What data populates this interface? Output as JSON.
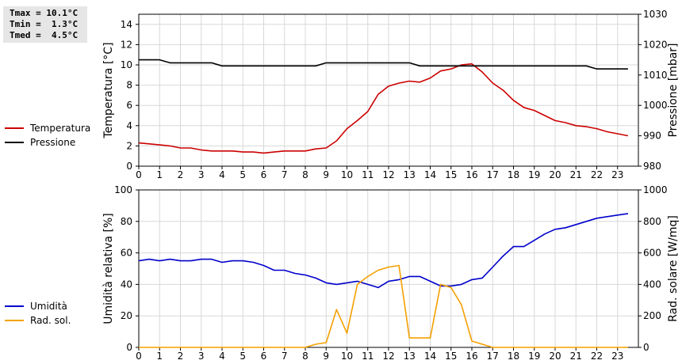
{
  "stats": {
    "tmax": "Tmax = 10.1°C",
    "tmin": "Tmin =  1.3°C",
    "tmed": "Tmed =  4.5°C"
  },
  "chart_data": [
    {
      "type": "line",
      "x": [
        0,
        0.5,
        1,
        1.5,
        2,
        2.5,
        3,
        3.5,
        4,
        4.5,
        5,
        5.5,
        6,
        6.5,
        7,
        7.5,
        8,
        8.5,
        9,
        9.5,
        10,
        10.5,
        11,
        11.5,
        12,
        12.5,
        13,
        13.5,
        14,
        14.5,
        15,
        15.5,
        16,
        16.5,
        17,
        17.5,
        18,
        18.5,
        19,
        19.5,
        20,
        20.5,
        21,
        21.5,
        22,
        22.5,
        23,
        23.5
      ],
      "xlim": [
        0,
        24
      ],
      "xticks": [
        0,
        1,
        2,
        3,
        4,
        5,
        6,
        7,
        8,
        9,
        10,
        11,
        12,
        13,
        14,
        15,
        16,
        17,
        18,
        19,
        20,
        21,
        22,
        23
      ],
      "ylabel": "Temperatura [°C]",
      "ylim": [
        0,
        15
      ],
      "yticks": [
        0,
        2,
        4,
        6,
        8,
        10,
        12,
        14
      ],
      "y2label": "Pressione [mbar]",
      "y2lim": [
        980,
        1030
      ],
      "y2ticks": [
        980,
        990,
        1000,
        1010,
        1020,
        1030
      ],
      "grid": true,
      "legend_position": "left",
      "series": [
        {
          "name": "Temperatura",
          "axis": "left",
          "color": "#cc0000",
          "values": [
            2.3,
            2.2,
            2.1,
            2.0,
            1.8,
            1.8,
            1.6,
            1.5,
            1.5,
            1.5,
            1.4,
            1.4,
            1.3,
            1.4,
            1.5,
            1.5,
            1.5,
            1.7,
            1.8,
            2.5,
            3.7,
            4.5,
            5.4,
            7.1,
            7.9,
            8.2,
            8.4,
            8.3,
            8.7,
            9.4,
            9.6,
            10.0,
            10.1,
            9.3,
            8.2,
            7.5,
            6.5,
            5.8,
            5.5,
            5.0,
            4.5,
            4.3,
            4.0,
            3.9,
            3.7,
            3.4,
            3.2,
            3.0
          ]
        },
        {
          "name": "Pressione",
          "axis": "right",
          "color": "#000000",
          "values": [
            1015,
            1015,
            1015,
            1014,
            1014,
            1014,
            1014,
            1014,
            1013,
            1013,
            1013,
            1013,
            1013,
            1013,
            1013,
            1013,
            1013,
            1013,
            1014,
            1014,
            1014,
            1014,
            1014,
            1014,
            1014,
            1014,
            1014,
            1013,
            1013,
            1013,
            1013,
            1013,
            1013,
            1013,
            1013,
            1013,
            1013,
            1013,
            1013,
            1013,
            1013,
            1013,
            1013,
            1013,
            1012,
            1012,
            1012,
            1012
          ]
        }
      ]
    },
    {
      "type": "line",
      "x": [
        0,
        0.5,
        1,
        1.5,
        2,
        2.5,
        3,
        3.5,
        4,
        4.5,
        5,
        5.5,
        6,
        6.5,
        7,
        7.5,
        8,
        8.5,
        9,
        9.5,
        10,
        10.5,
        11,
        11.5,
        12,
        12.5,
        13,
        13.5,
        14,
        14.5,
        15,
        15.5,
        16,
        16.5,
        17,
        17.5,
        18,
        18.5,
        19,
        19.5,
        20,
        20.5,
        21,
        21.5,
        22,
        22.5,
        23,
        23.5
      ],
      "xlim": [
        0,
        24
      ],
      "xticks": [
        0,
        1,
        2,
        3,
        4,
        5,
        6,
        7,
        8,
        9,
        10,
        11,
        12,
        13,
        14,
        15,
        16,
        17,
        18,
        19,
        20,
        21,
        22,
        23
      ],
      "ylabel": "Umidità relativa [%]",
      "ylim": [
        0,
        100
      ],
      "yticks": [
        0,
        20,
        40,
        60,
        80,
        100
      ],
      "y2label": "Rad. solare [W/mq]",
      "y2lim": [
        0,
        1000
      ],
      "y2ticks": [
        0,
        200,
        400,
        600,
        800,
        1000
      ],
      "grid": true,
      "legend_position": "left",
      "series": [
        {
          "name": "Umidità",
          "axis": "left",
          "color": "#0000cc",
          "values": [
            55,
            56,
            55,
            56,
            55,
            55,
            56,
            56,
            54,
            55,
            55,
            54,
            52,
            49,
            49,
            47,
            46,
            44,
            41,
            40,
            41,
            42,
            40,
            38,
            42,
            43,
            45,
            45,
            42,
            39,
            39,
            40,
            43,
            44,
            51,
            58,
            64,
            64,
            68,
            72,
            75,
            76,
            78,
            80,
            82,
            83,
            84,
            85
          ]
        },
        {
          "name": "Rad. sol.",
          "axis": "right",
          "color": "#f5a000",
          "values": [
            0,
            0,
            0,
            0,
            0,
            0,
            0,
            0,
            0,
            0,
            0,
            0,
            0,
            0,
            0,
            0,
            0,
            20,
            30,
            240,
            90,
            400,
            450,
            490,
            510,
            520,
            60,
            60,
            60,
            400,
            380,
            270,
            40,
            20,
            0,
            0,
            0,
            0,
            0,
            0,
            0,
            0,
            0,
            0,
            0,
            0,
            0,
            0
          ]
        }
      ]
    }
  ]
}
